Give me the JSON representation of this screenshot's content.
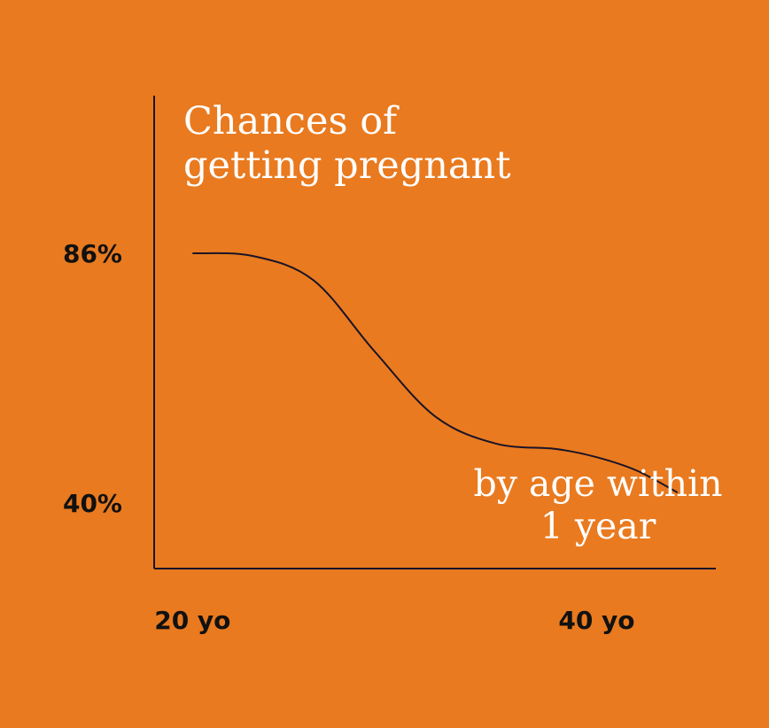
{
  "chart_data": {
    "type": "line",
    "title": [
      "Chances of",
      "getting pregnant"
    ],
    "subtitle": [
      "by age within",
      "1 year"
    ],
    "x": [
      20,
      23,
      26,
      29,
      32,
      35,
      38,
      40,
      42,
      44
    ],
    "y": [
      86,
      85.5,
      81,
      68,
      56,
      51,
      50,
      48.5,
      46,
      42
    ],
    "x_ticks": [
      {
        "value": 20,
        "label": "20 yo"
      },
      {
        "value": 40,
        "label": "40 yo"
      }
    ],
    "y_ticks": [
      {
        "value": 86,
        "label": "86%"
      },
      {
        "value": 40,
        "label": "40%"
      }
    ],
    "xlim": [
      18.1,
      45.9
    ],
    "ylim": [
      28,
      115
    ],
    "grid": false,
    "legend": "none",
    "colors": {
      "background": "#e97a1f",
      "line": "#1a1428",
      "text": "#ffffff",
      "ticks": "#111111"
    }
  }
}
